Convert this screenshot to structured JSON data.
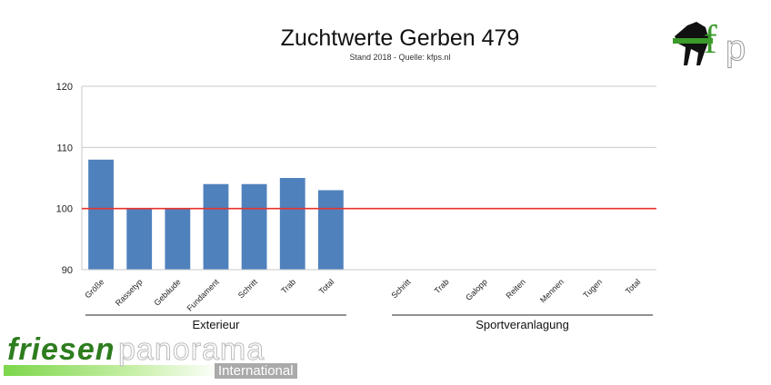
{
  "chart_data": {
    "type": "bar",
    "title": "Zuchtwerte Gerben 479",
    "subtitle": "Stand 2018 - Quelle: kfps.nl",
    "ylim": [
      90,
      120
    ],
    "yticks": [
      "90",
      "100",
      "110",
      "120"
    ],
    "reference_line": {
      "value": 100,
      "color": "#e8332a"
    },
    "bar_color": "#4f81bd",
    "grid": true,
    "groups": [
      {
        "name": "Exterieur",
        "categories": [
          "Größe",
          "Rassetyp",
          "Gebäude",
          "Fundament",
          "Schritt",
          "Trab",
          "Total"
        ],
        "values": [
          108,
          100,
          100,
          104,
          104,
          105,
          103
        ]
      },
      {
        "name": "Sportveranlagung",
        "categories": [
          "Schritt",
          "Trab",
          "Galopp",
          "Reiten",
          "Mennen",
          "Tugen",
          "Total"
        ],
        "values": [
          null,
          null,
          null,
          null,
          null,
          null,
          null
        ]
      }
    ]
  },
  "logos": {
    "top_right": "kfp",
    "bottom_left": "friesenpanorama International"
  }
}
